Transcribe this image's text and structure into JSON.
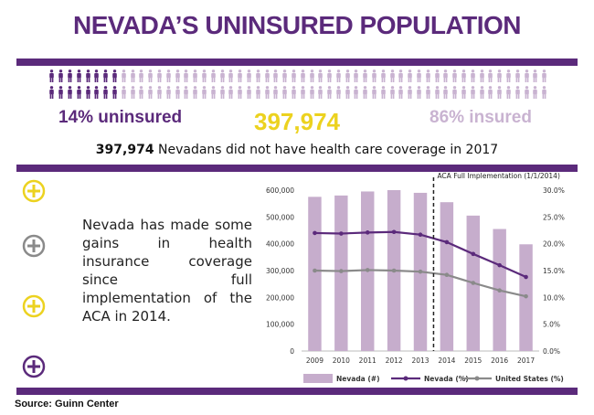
{
  "header": {
    "title": "NEVADA’S UNINSURED POPULATION"
  },
  "stats": {
    "uninsured_label": "14% uninsured",
    "total_value": "397,974",
    "insured_label": "86% insured",
    "summary_value": "397,974",
    "summary_text": " Nevadans did not have health care coverage in 2017"
  },
  "pictogram": {
    "uninsured_fraction": 0.14,
    "icon": "person-icon"
  },
  "body": {
    "text": "Nevada has made some gains in health insurance coverage since full implementation of the ACA in 2014."
  },
  "footer": {
    "source": "Source: Guinn Center"
  },
  "colors": {
    "purple": "#5b2a7b",
    "light_purple": "#c9b3d1",
    "bar_fill": "#c6adcc",
    "yellow": "#ecd21f",
    "gray": "#8a8a8a"
  },
  "icons": [
    "plus-circle-icon-yellow",
    "plus-circle-icon-gray",
    "plus-circle-icon-yellow",
    "plus-circle-icon-purple"
  ],
  "chart_data": {
    "type": "bar",
    "categories": [
      "2009",
      "2010",
      "2011",
      "2012",
      "2013",
      "2014",
      "2015",
      "2016",
      "2017"
    ],
    "series": [
      {
        "name": "Nevada (#)",
        "type": "bar",
        "axis": "left",
        "values": [
          575000,
          580000,
          595000,
          600000,
          590000,
          555000,
          505000,
          455000,
          397974
        ]
      },
      {
        "name": "Nevada (%)",
        "type": "line",
        "axis": "right",
        "values": [
          22.0,
          21.9,
          22.1,
          22.2,
          21.7,
          20.3,
          18.1,
          16.0,
          13.8
        ]
      },
      {
        "name": "United States (%)",
        "type": "line",
        "axis": "right",
        "values": [
          15.0,
          14.9,
          15.1,
          15.0,
          14.8,
          14.2,
          12.7,
          11.3,
          10.2
        ]
      }
    ],
    "left_ticks": [
      "0",
      "100,000",
      "200,000",
      "300,000",
      "400,000",
      "500,000",
      "600,000"
    ],
    "right_ticks": [
      "0.0%",
      "5.0%",
      "10.0%",
      "15.0%",
      "20.0%",
      "25.0%",
      "30.0%"
    ],
    "ylim_left": [
      0,
      600000
    ],
    "ylim_right": [
      0,
      30
    ],
    "annotation": {
      "label": "ACA Full Implementation (1/1/2014)",
      "between": [
        "2013",
        "2014"
      ]
    },
    "legend_position": "bottom"
  }
}
